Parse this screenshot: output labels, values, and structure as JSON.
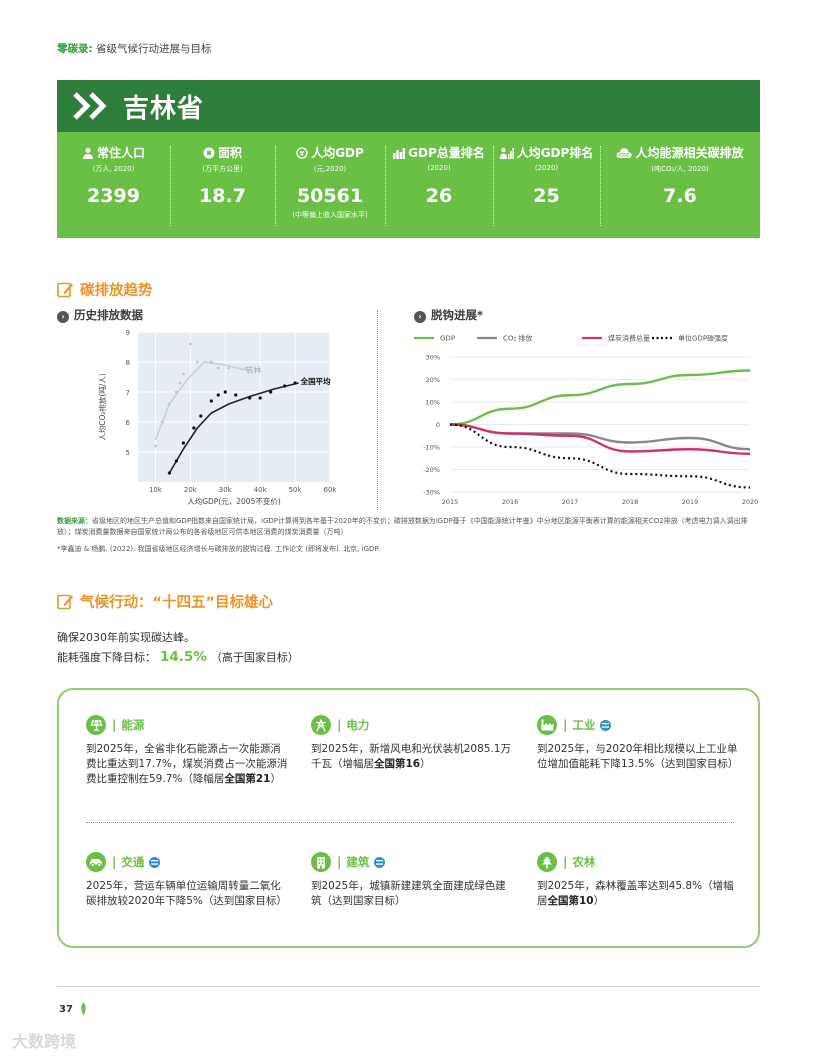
{
  "header": {
    "label": "零碳录",
    "colon": ":",
    "subtitle": "省级气候行动进展与目标"
  },
  "province": "吉林省",
  "stats": [
    {
      "label": "常住人口",
      "unit": "(万人, 2020)",
      "value": "2399",
      "note": ""
    },
    {
      "label": "面积",
      "unit": "(万平方公里)",
      "value": "18.7",
      "note": ""
    },
    {
      "label": "人均GDP",
      "unit": "(元,2020)",
      "value": "50561",
      "note": "(中等偏上收入国家水平)"
    },
    {
      "label": "GDP总量排名",
      "unit": "(2020)",
      "value": "26",
      "note": ""
    },
    {
      "label": "人均GDP排名",
      "unit": "(2020)",
      "value": "25",
      "note": ""
    },
    {
      "label": "人均能源相关碳排放",
      "unit": "(吨CO₂/人, 2020)",
      "value": "7.6",
      "note": ""
    }
  ],
  "section1": {
    "title": "碳排放趋势"
  },
  "left_chart_title": "历史排放数据",
  "right_chart_title": "脱钩进展*",
  "chart_data": [
    {
      "type": "scatter",
      "title": "历史排放数据",
      "xlabel": "人均GDP(元，2005不变价)",
      "ylabel": "人均CO₂排放(吨/人)",
      "xlim": [
        5000,
        60000
      ],
      "ylim": [
        4,
        9
      ],
      "xticks": [
        "10k",
        "20k",
        "30k",
        "40k",
        "50k",
        "60k"
      ],
      "yticks": [
        "5",
        "6",
        "7",
        "8",
        "9"
      ],
      "series": [
        {
          "name": "吉林",
          "points": [
            [
              10000,
              5.2
            ],
            [
              12000,
              6.0
            ],
            [
              14000,
              6.6
            ],
            [
              16000,
              7.0
            ],
            [
              17000,
              7.3
            ],
            [
              18000,
              7.6
            ],
            [
              20000,
              8.6
            ],
            [
              22000,
              8.0
            ],
            [
              26000,
              8.0
            ],
            [
              28000,
              7.8
            ],
            [
              31000,
              7.8
            ],
            [
              36000,
              7.8
            ]
          ],
          "line": [
            [
              10000,
              5.4
            ],
            [
              14000,
              6.6
            ],
            [
              19000,
              7.4
            ],
            [
              24000,
              8.0
            ],
            [
              30000,
              7.9
            ],
            [
              37000,
              7.7
            ]
          ]
        },
        {
          "name": "全国平均",
          "points": [
            [
              14000,
              4.3
            ],
            [
              16000,
              4.7
            ],
            [
              18000,
              5.3
            ],
            [
              21000,
              5.8
            ],
            [
              23000,
              6.2
            ],
            [
              26000,
              6.7
            ],
            [
              28000,
              6.9
            ],
            [
              30000,
              7.0
            ],
            [
              33000,
              6.9
            ],
            [
              37000,
              6.8
            ],
            [
              40000,
              6.8
            ],
            [
              43000,
              7.0
            ],
            [
              47000,
              7.2
            ],
            [
              50000,
              7.3
            ]
          ],
          "line": [
            [
              14000,
              4.3
            ],
            [
              18000,
              5.1
            ],
            [
              22000,
              5.8
            ],
            [
              26000,
              6.3
            ],
            [
              31000,
              6.6
            ],
            [
              37000,
              6.85
            ],
            [
              44000,
              7.1
            ],
            [
              51000,
              7.3
            ]
          ]
        }
      ]
    },
    {
      "type": "line",
      "title": "脱钩进展*",
      "x": [
        2015,
        2016,
        2017,
        2018,
        2019,
        2020
      ],
      "ylim": [
        -30,
        30
      ],
      "yticks": [
        "30%",
        "20%",
        "10%",
        "0",
        "-10%",
        "-20%",
        "-30%"
      ],
      "series": [
        {
          "name": "GDP",
          "color": "#6abf45",
          "values": [
            0,
            7,
            13,
            18,
            22,
            24
          ]
        },
        {
          "name": "CO₂ 排放",
          "color": "#888888",
          "values": [
            0,
            -4,
            -4,
            -8,
            -6,
            -11
          ]
        },
        {
          "name": "煤炭消费总量",
          "color": "#cc3366",
          "values": [
            0,
            -4,
            -5,
            -12,
            -11,
            -13
          ]
        },
        {
          "name": "单位GDP碳强度",
          "color": "#111111",
          "values": [
            0,
            -10,
            -15,
            -22,
            -23,
            -28
          ]
        }
      ]
    }
  ],
  "source": {
    "label": "数据来源：",
    "text": "省级地区的地区生产总值和GDP指数来自国家统计局，iGDP计算得到各年基于2020年的不变价；碳排放数据为iGDP基于《中国能源统计年鉴》中分地区能源平衡表计算的能源相关CO2排放（考虑电力调入调出排放）；煤炭消费量数据来自国家统计局公布的各省级地区可供本地区消费的煤炭消费量（万吨）"
  },
  "citation": "*李鑫迪 & 杨鹏. (2022). 我国省级地区经济增长与碳排放的脱钩过程. 工作论文 (即将发布). 北京, iGDP.",
  "section2": {
    "title": "气候行动：“十四五”目标雄心"
  },
  "goals": {
    "line1": "确保2030年前实现碳达峰。",
    "line2_prefix": "能耗强度下降目标：",
    "line2_value": "14.5%",
    "line2_suffix": "（高于国家目标）"
  },
  "sectors": [
    {
      "name": "能源",
      "icon": "solar-panel-icon",
      "body": "到2025年，全省非化石能源占一次能源消费比重达到17.7%，煤炭消费占一次能源消费比重控制在59.7%（降幅居",
      "bold": "全国第21",
      "tail": "）"
    },
    {
      "name": "电力",
      "icon": "power-tower-icon",
      "body": "到2025年，新增风电和光伏装机2085.1万千瓦（增幅居",
      "bold": "全国第16",
      "tail": "）"
    },
    {
      "name": "工业",
      "icon": "factory-icon",
      "body": "到2025年，与2020年相比规模以上工业单位增加值能耗下降13.5%（达到国家目标）",
      "bold": "",
      "tail": ""
    },
    {
      "name": "交通",
      "icon": "car-icon",
      "body": "2025年，营运车辆单位运输周转量二氧化碳排放较2020年下降5%（达到国家目标）",
      "bold": "",
      "tail": ""
    },
    {
      "name": "建筑",
      "icon": "building-icon",
      "body": "到2025年，城镇新建建筑全面建成绿色建筑（达到国家目标）",
      "bold": "",
      "tail": ""
    },
    {
      "name": "农林",
      "icon": "tree-icon",
      "body": "到2025年，森林覆盖率达到45.8%（增幅居",
      "bold": "全国第10",
      "tail": "）"
    }
  ],
  "sector_sep": "|",
  "footer": {
    "page": "37",
    "watermark": "大数跨境"
  }
}
